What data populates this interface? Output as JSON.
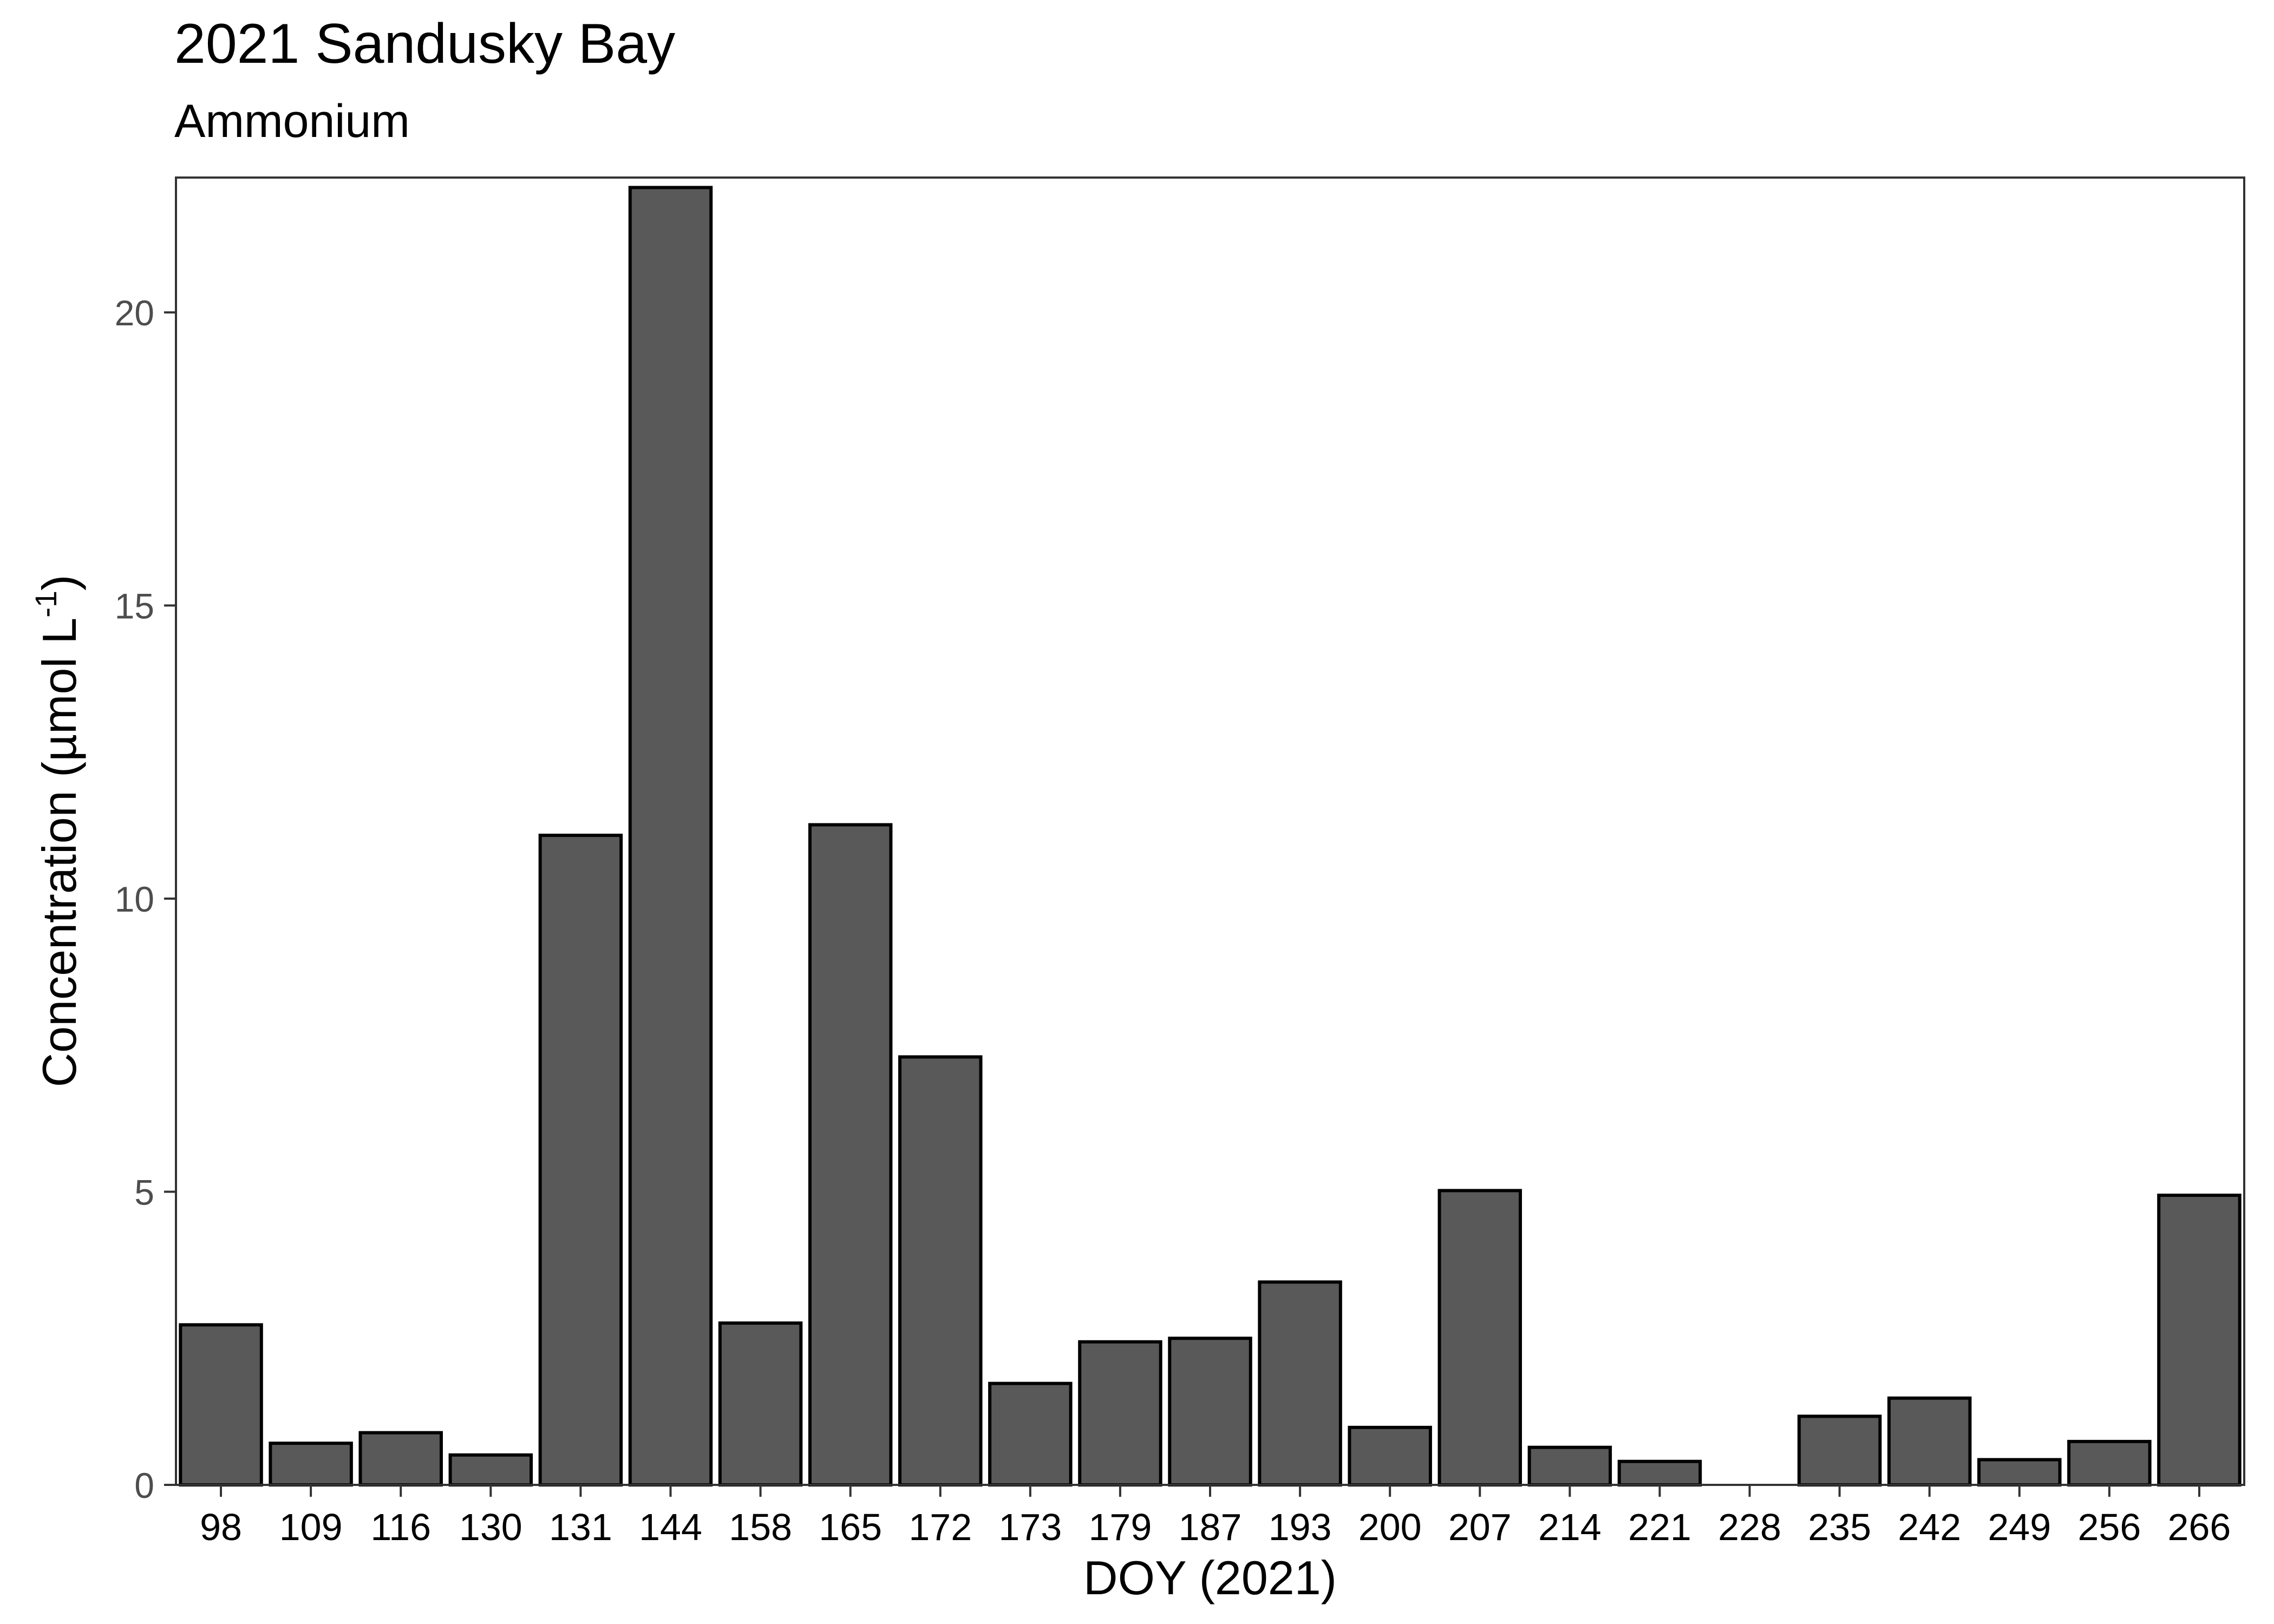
{
  "chart_data": {
    "type": "bar",
    "title": "2021 Sandusky Bay",
    "subtitle": "Ammonium",
    "xlabel": "DOY (2021)",
    "ylabel": "Concentration (µmol L",
    "ylabel_sup": "-1",
    "ylabel_close": ")",
    "categories": [
      "98",
      "109",
      "116",
      "130",
      "131",
      "144",
      "158",
      "165",
      "172",
      "173",
      "179",
      "187",
      "193",
      "200",
      "207",
      "214",
      "221",
      "228",
      "235",
      "242",
      "249",
      "256",
      "266"
    ],
    "values": [
      2.73,
      0.71,
      0.89,
      0.51,
      11.08,
      22.13,
      2.76,
      11.26,
      7.3,
      1.73,
      2.44,
      2.5,
      3.46,
      0.98,
      5.02,
      0.64,
      0.4,
      0.0,
      1.17,
      1.48,
      0.43,
      0.74,
      4.94
    ],
    "yticks": [
      0,
      5,
      10,
      15,
      20
    ],
    "ylim": [
      0,
      22.3
    ],
    "grid": false,
    "legend": "none",
    "colors": {
      "bar_fill": "#595959",
      "bar_stroke": "#000000",
      "panel_border": "#333333",
      "tick_text": "#4d4d4d"
    }
  }
}
